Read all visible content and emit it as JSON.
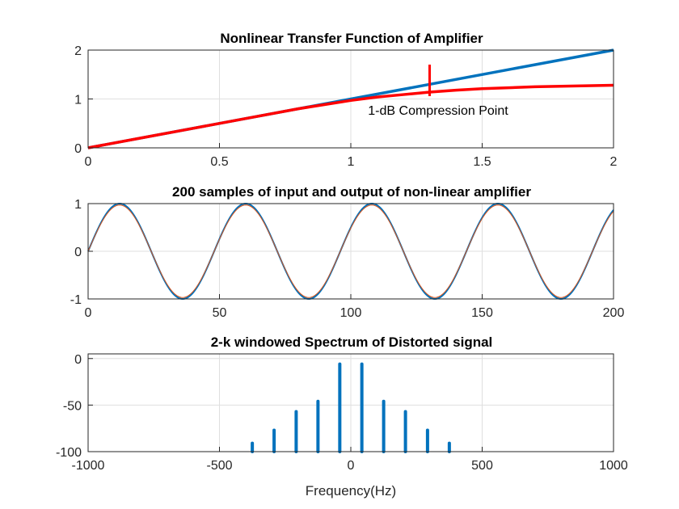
{
  "chart_data": [
    {
      "type": "line",
      "title": "Nonlinear Transfer Function of Amplifier",
      "xlabel": "",
      "ylabel": "",
      "xlim": [
        0,
        2
      ],
      "ylim": [
        0,
        2
      ],
      "x_ticks": [
        0,
        0.5,
        1,
        1.5,
        2
      ],
      "x_tick_labels": [
        "0",
        "0.5",
        "1",
        "1.5",
        "2"
      ],
      "y_ticks": [
        0,
        1,
        2
      ],
      "y_tick_labels": [
        "0",
        "1",
        "2"
      ],
      "grid": true,
      "series": [
        {
          "color": "#0072BD",
          "x": [
            0,
            2
          ],
          "y": [
            0,
            2
          ]
        },
        {
          "color": "#FF0000",
          "x": [
            0,
            0.2,
            0.4,
            0.6,
            0.8,
            1.0,
            1.1,
            1.2,
            1.3,
            1.4,
            1.5,
            1.6,
            1.7,
            1.8,
            1.9,
            2.0
          ],
          "y": [
            0,
            0.2,
            0.4,
            0.6,
            0.8,
            0.97,
            1.04,
            1.09,
            1.14,
            1.18,
            1.21,
            1.23,
            1.25,
            1.26,
            1.27,
            1.28
          ]
        }
      ],
      "annotations": [
        {
          "text": "1-dB Compression Point",
          "x": 1.3,
          "y": 1.24,
          "color": "#FF0000"
        }
      ]
    },
    {
      "type": "line",
      "title": "200 samples of input and output of non-linear amplifier",
      "xlabel": "",
      "ylabel": "",
      "xlim": [
        0,
        200
      ],
      "ylim": [
        -1,
        1
      ],
      "x_ticks": [
        0,
        50,
        100,
        150,
        200
      ],
      "x_tick_labels": [
        "0",
        "50",
        "100",
        "150",
        "200"
      ],
      "y_ticks": [
        -1,
        0,
        1
      ],
      "y_tick_labels": [
        "-1",
        "0",
        "1"
      ],
      "grid": true,
      "period_samples": 48,
      "series": [
        {
          "color": "#0072BD",
          "amplitude": 1.0
        },
        {
          "color": "#D95319",
          "amplitude": 0.97
        }
      ]
    },
    {
      "type": "bar",
      "title": "2-k windowed Spectrum of Distorted signal",
      "xlabel": "Frequency(Hz)",
      "ylabel": "",
      "xlim": [
        -1000,
        1000
      ],
      "ylim": [
        -100,
        5
      ],
      "x_ticks": [
        -1000,
        -500,
        0,
        500,
        1000
      ],
      "x_tick_labels": [
        "-1000",
        "-500",
        "0",
        "500",
        "1000"
      ],
      "y_ticks": [
        -100,
        -50,
        0
      ],
      "y_tick_labels": [
        "-100",
        "-50",
        "0"
      ],
      "grid": true,
      "series": [
        {
          "color": "#0072BD",
          "x": [
            -375,
            -292,
            -208,
            -125,
            -42,
            42,
            125,
            208,
            292,
            375
          ],
          "y": [
            -91,
            -77,
            -57,
            -46,
            -6,
            -6,
            -46,
            -57,
            -77,
            -91
          ]
        }
      ]
    }
  ]
}
